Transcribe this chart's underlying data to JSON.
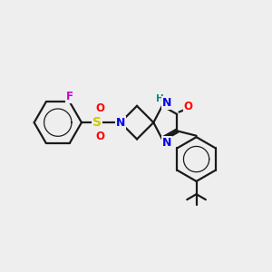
{
  "bg_color": "#eeeeee",
  "bond_color": "#1a1a1a",
  "bond_width": 1.6,
  "N_color": "#0000ee",
  "O_color": "#ff0000",
  "S_color": "#cccc00",
  "F_color": "#cc00cc",
  "NH_color": "#008888",
  "H_color": "#008888",
  "figsize": [
    3.0,
    3.0
  ],
  "dpi": 100,
  "xlim": [
    0,
    10
  ],
  "ylim": [
    0,
    10
  ]
}
